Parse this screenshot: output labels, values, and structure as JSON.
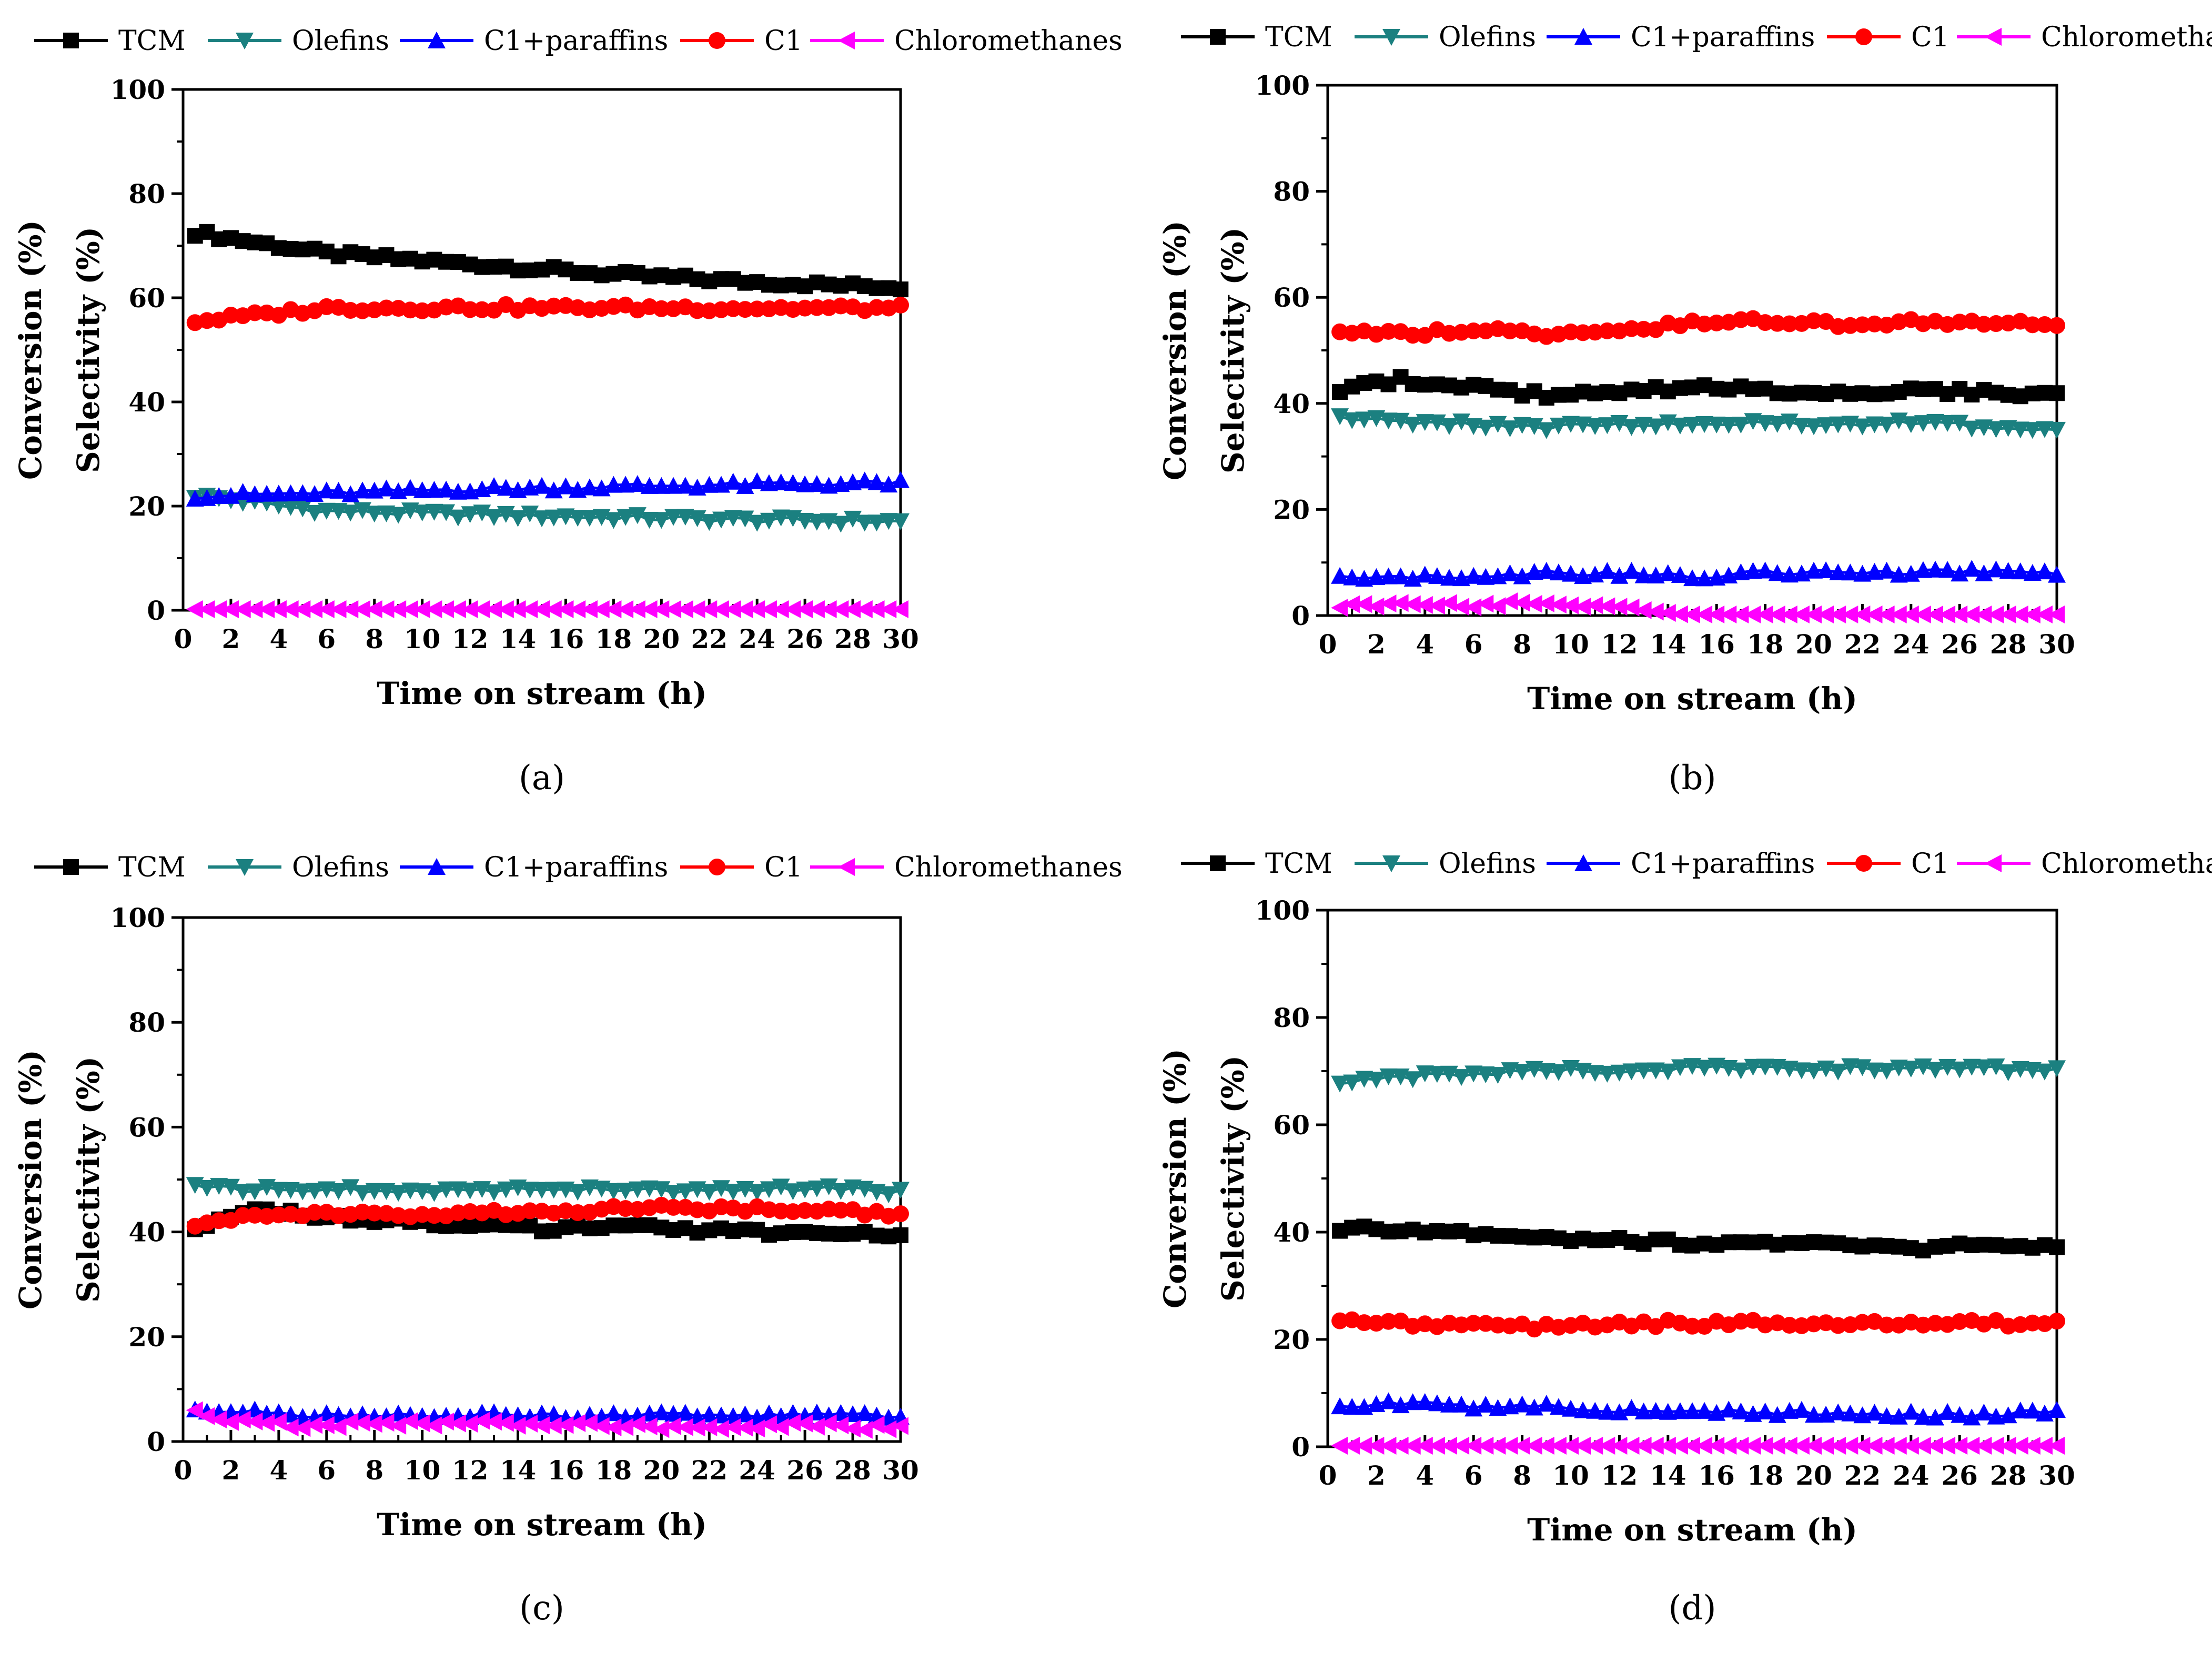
{
  "colors": {
    "TCM": "#000000",
    "Olefins": "#1b8080",
    "C1+paraffins": "#0000ff",
    "C1": "#ff0000",
    "Chloromethanes": "#ff00ff"
  },
  "markers": {
    "TCM": "square",
    "Olefins": "triangle-down",
    "C1+paraffins": "triangle-up",
    "C1": "circle",
    "Chloromethanes": "triangle-left"
  },
  "chart_data": [
    {
      "panel_label": "(a)",
      "type": "line",
      "xlabel": "Time on stream (h)",
      "ylabel_outer": "Conversion (%)",
      "ylabel_inner": "Selectivity (%)",
      "xlim": [
        0,
        30
      ],
      "ylim": [
        0,
        100
      ],
      "xticks": [
        0,
        2,
        4,
        6,
        8,
        10,
        12,
        14,
        16,
        18,
        20,
        22,
        24,
        26,
        28,
        30
      ],
      "yticks": [
        0,
        20,
        40,
        60,
        80,
        100
      ],
      "legend_position": "top",
      "x": [
        0.5,
        6,
        12,
        18,
        24,
        30
      ],
      "series": [
        {
          "name": "TCM",
          "values": [
            72.5,
            68.5,
            66.5,
            64.5,
            63.0,
            62.0
          ]
        },
        {
          "name": "Olefins",
          "values": [
            22.0,
            19.0,
            18.3,
            17.8,
            17.3,
            17.0
          ]
        },
        {
          "name": "C1+paraffins",
          "values": [
            22.0,
            22.5,
            23.3,
            23.8,
            24.2,
            24.5
          ]
        },
        {
          "name": "C1",
          "values": [
            55.5,
            58.0,
            58.1,
            58.1,
            58.0,
            58.0
          ]
        },
        {
          "name": "Chloromethanes",
          "values": [
            0,
            0,
            0,
            0,
            0,
            0
          ]
        }
      ]
    },
    {
      "panel_label": "(b)",
      "type": "line",
      "xlabel": "Time on stream (h)",
      "ylabel_outer": "Conversion (%)",
      "ylabel_inner": "Selectivity (%)",
      "xlim": [
        0,
        30
      ],
      "ylim": [
        0,
        100
      ],
      "xticks": [
        0,
        2,
        4,
        6,
        8,
        10,
        12,
        14,
        16,
        18,
        20,
        22,
        24,
        26,
        28,
        30
      ],
      "yticks": [
        0,
        20,
        40,
        60,
        80,
        100
      ],
      "legend_position": "top",
      "x": [
        0.5,
        3,
        6,
        9,
        12,
        15,
        18,
        21,
        24,
        27,
        30
      ],
      "series": [
        {
          "name": "TCM",
          "values": [
            42.5,
            44.5,
            43.0,
            41.5,
            42.0,
            43.0,
            42.5,
            42.0,
            42.5,
            42.0,
            41.5
          ]
        },
        {
          "name": "Olefins",
          "values": [
            37.0,
            36.5,
            36.0,
            35.5,
            36.0,
            36.5,
            36.0,
            36.0,
            36.5,
            35.5,
            34.5
          ]
        },
        {
          "name": "C1+paraffins",
          "values": [
            7.5,
            7.5,
            7.5,
            8.0,
            8.0,
            7.5,
            8.0,
            8.0,
            8.0,
            8.5,
            8.0
          ]
        },
        {
          "name": "C1",
          "values": [
            53.5,
            53.0,
            54.0,
            53.0,
            54.0,
            55.0,
            55.5,
            55.0,
            55.5,
            55.0,
            55.0
          ]
        },
        {
          "name": "Chloromethanes",
          "values": [
            1.5,
            2.5,
            2.0,
            2.5,
            1.5,
            0,
            0,
            0,
            0,
            0,
            0
          ]
        }
      ]
    },
    {
      "panel_label": "(c)",
      "type": "line",
      "xlabel": "Time on stream (h)",
      "ylabel_outer": "Conversion (%)",
      "ylabel_inner": "Selectivity (%)",
      "xlim": [
        0,
        30
      ],
      "ylim": [
        0,
        100
      ],
      "xticks": [
        0,
        2,
        4,
        6,
        8,
        10,
        12,
        14,
        16,
        18,
        20,
        22,
        24,
        26,
        28,
        30
      ],
      "yticks": [
        0,
        20,
        40,
        60,
        80,
        100
      ],
      "legend_position": "top",
      "x": [
        0.5,
        3,
        6,
        9,
        12,
        15,
        18,
        21,
        24,
        27,
        30
      ],
      "series": [
        {
          "name": "TCM",
          "values": [
            41.0,
            44.0,
            43.0,
            42.0,
            41.5,
            40.5,
            41.0,
            40.5,
            40.0,
            40.0,
            39.0
          ]
        },
        {
          "name": "Olefins",
          "values": [
            48.5,
            48.0,
            48.0,
            48.0,
            48.0,
            48.0,
            48.0,
            48.0,
            48.0,
            48.5,
            47.5
          ]
        },
        {
          "name": "C1+paraffins",
          "values": [
            6.0,
            5.5,
            5.0,
            5.0,
            5.0,
            5.0,
            5.0,
            5.0,
            5.0,
            5.0,
            5.0
          ]
        },
        {
          "name": "C1",
          "values": [
            41.5,
            43.5,
            43.5,
            43.5,
            43.5,
            44.0,
            44.5,
            44.5,
            44.5,
            44.0,
            43.5
          ]
        },
        {
          "name": "Chloromethanes",
          "values": [
            5.5,
            3.5,
            3.0,
            3.5,
            3.5,
            3.0,
            3.0,
            2.5,
            3.0,
            3.0,
            2.5
          ]
        }
      ]
    },
    {
      "panel_label": "(d)",
      "type": "line",
      "xlabel": "Time on stream (h)",
      "ylabel_outer": "Conversion (%)",
      "ylabel_inner": "Selectivity (%)",
      "xlim": [
        0,
        30
      ],
      "ylim": [
        0,
        100
      ],
      "xticks": [
        0,
        2,
        4,
        6,
        8,
        10,
        12,
        14,
        16,
        18,
        20,
        22,
        24,
        26,
        28,
        30
      ],
      "yticks": [
        0,
        20,
        40,
        60,
        80,
        100
      ],
      "legend_position": "top",
      "x": [
        0.5,
        3,
        6,
        9,
        12,
        15,
        18,
        21,
        24,
        27,
        30
      ],
      "series": [
        {
          "name": "TCM",
          "values": [
            40.5,
            40.5,
            40.0,
            39.0,
            38.5,
            38.0,
            38.0,
            37.5,
            37.0,
            37.5,
            37.0
          ]
        },
        {
          "name": "Olefins",
          "values": [
            68.0,
            69.0,
            69.5,
            70.0,
            70.0,
            70.5,
            70.5,
            70.5,
            70.5,
            70.5,
            70.0
          ]
        },
        {
          "name": "C1+paraffins",
          "values": [
            8.0,
            8.0,
            7.5,
            7.5,
            7.0,
            6.5,
            6.5,
            6.5,
            6.0,
            6.0,
            6.5
          ]
        },
        {
          "name": "C1",
          "values": [
            23.5,
            23.0,
            22.5,
            22.5,
            23.0,
            23.0,
            23.0,
            23.0,
            23.0,
            23.0,
            23.0
          ]
        },
        {
          "name": "Chloromethanes",
          "values": [
            0,
            0,
            0,
            0,
            0,
            0,
            0,
            0,
            0,
            0,
            0
          ]
        }
      ]
    }
  ]
}
